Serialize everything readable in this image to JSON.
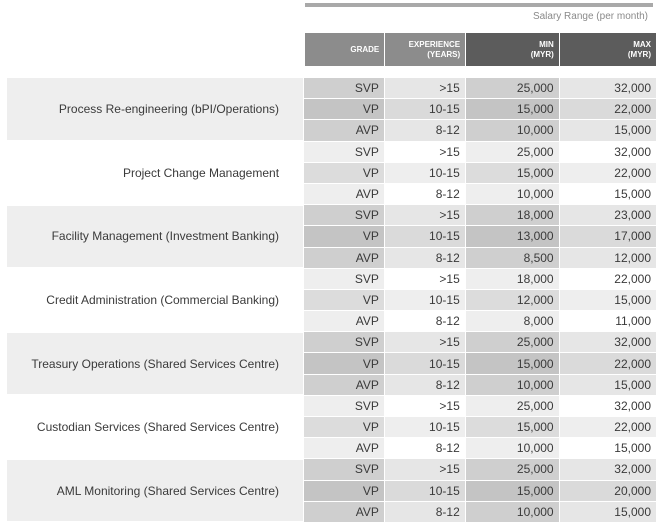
{
  "header": {
    "salary_range": "Salary Range (per month)",
    "grade": "GRADE",
    "experience_l1": "EXPERIENCE",
    "experience_l2": "(YEARS)",
    "min_l1": "MIN",
    "min_l2": "(MYR)",
    "max_l1": "MAX",
    "max_l2": "(MYR)"
  },
  "groups": [
    {
      "role": "Process Re-engineering (bPI/Operations)",
      "rows": [
        {
          "grade": "SVP",
          "experience": ">15",
          "min": "25,000",
          "max": "32,000"
        },
        {
          "grade": "VP",
          "experience": "10-15",
          "min": "15,000",
          "max": "22,000"
        },
        {
          "grade": "AVP",
          "experience": "8-12",
          "min": "10,000",
          "max": "15,000"
        }
      ]
    },
    {
      "role": "Project Change Management",
      "rows": [
        {
          "grade": "SVP",
          "experience": ">15",
          "min": "25,000",
          "max": "32,000"
        },
        {
          "grade": "VP",
          "experience": "10-15",
          "min": "15,000",
          "max": "22,000"
        },
        {
          "grade": "AVP",
          "experience": "8-12",
          "min": "10,000",
          "max": "15,000"
        }
      ]
    },
    {
      "role": "Facility Management (Investment Banking)",
      "rows": [
        {
          "grade": "SVP",
          "experience": ">15",
          "min": "18,000",
          "max": "23,000"
        },
        {
          "grade": "VP",
          "experience": "10-15",
          "min": "13,000",
          "max": "17,000"
        },
        {
          "grade": "AVP",
          "experience": "8-12",
          "min": "8,500",
          "max": "12,000"
        }
      ]
    },
    {
      "role": "Credit Administration (Commercial Banking)",
      "rows": [
        {
          "grade": "SVP",
          "experience": ">15",
          "min": "18,000",
          "max": "22,000"
        },
        {
          "grade": "VP",
          "experience": "10-15",
          "min": "12,000",
          "max": "15,000"
        },
        {
          "grade": "AVP",
          "experience": "8-12",
          "min": "8,000",
          "max": "11,000"
        }
      ]
    },
    {
      "role": "Treasury Operations (Shared Services Centre)",
      "rows": [
        {
          "grade": "SVP",
          "experience": ">15",
          "min": "25,000",
          "max": "32,000"
        },
        {
          "grade": "VP",
          "experience": "10-15",
          "min": "15,000",
          "max": "22,000"
        },
        {
          "grade": "AVP",
          "experience": "8-12",
          "min": "10,000",
          "max": "15,000"
        }
      ]
    },
    {
      "role": "Custodian Services (Shared Services Centre)",
      "rows": [
        {
          "grade": "SVP",
          "experience": ">15",
          "min": "25,000",
          "max": "32,000"
        },
        {
          "grade": "VP",
          "experience": "10-15",
          "min": "15,000",
          "max": "22,000"
        },
        {
          "grade": "AVP",
          "experience": "8-12",
          "min": "10,000",
          "max": "15,000"
        }
      ]
    },
    {
      "role": "AML Monitoring (Shared Services Centre)",
      "rows": [
        {
          "grade": "SVP",
          "experience": ">15",
          "min": "25,000",
          "max": "32,000"
        },
        {
          "grade": "VP",
          "experience": "10-15",
          "min": "15,000",
          "max": "20,000"
        },
        {
          "grade": "AVP",
          "experience": "8-12",
          "min": "10,000",
          "max": "15,000"
        }
      ]
    }
  ]
}
